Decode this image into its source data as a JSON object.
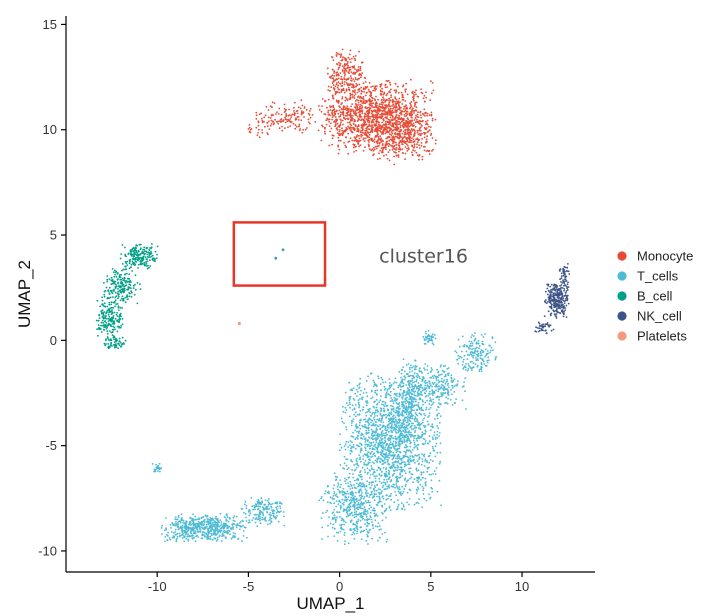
{
  "chart_data": {
    "type": "scatter",
    "xlabel": "UMAP_1",
    "ylabel": "UMAP_2",
    "xlim": [
      -15,
      14
    ],
    "ylim": [
      -11,
      15.4
    ],
    "x_ticks": [
      -10,
      -5,
      0,
      5,
      10
    ],
    "x_tick_labels": [
      "-10",
      "-5",
      "0",
      "5",
      "10"
    ],
    "y_ticks": [
      -10,
      -5,
      0,
      5,
      10,
      15
    ],
    "y_tick_labels": [
      "-10",
      "-5",
      "0",
      "5",
      "10",
      "15"
    ],
    "grid": false,
    "legend_position": "right",
    "series": [
      {
        "name": "Monocyte",
        "color": "#E64B35",
        "regions": [
          {
            "center": [
              2.0,
              10.6
            ],
            "spread": [
              2.6,
              1.5
            ],
            "count": 1300
          },
          {
            "center": [
              0.4,
              12.6
            ],
            "spread": [
              0.9,
              1.0
            ],
            "count": 220
          },
          {
            "center": [
              3.5,
              9.8
            ],
            "spread": [
              1.5,
              1.2
            ],
            "count": 300
          },
          {
            "center": [
              -2.6,
              10.6
            ],
            "spread": [
              1.2,
              0.7
            ],
            "count": 120
          },
          {
            "center": [
              -4.3,
              10.3
            ],
            "spread": [
              0.6,
              0.7
            ],
            "count": 40
          }
        ]
      },
      {
        "name": "T_cells",
        "color": "#4DBBD5",
        "regions": [
          {
            "center": [
              2.8,
              -4.8
            ],
            "spread": [
              2.3,
              2.8
            ],
            "count": 1600
          },
          {
            "center": [
              0.8,
              -8.0
            ],
            "spread": [
              1.6,
              1.4
            ],
            "count": 450
          },
          {
            "center": [
              5.2,
              -2.2
            ],
            "spread": [
              1.5,
              0.9
            ],
            "count": 260
          },
          {
            "center": [
              7.4,
              -0.6
            ],
            "spread": [
              1.0,
              0.8
            ],
            "count": 160
          },
          {
            "center": [
              4.9,
              0.1
            ],
            "spread": [
              0.35,
              0.3
            ],
            "count": 40
          },
          {
            "center": [
              -7.4,
              -8.9
            ],
            "spread": [
              2.0,
              0.55
            ],
            "count": 560
          },
          {
            "center": [
              -4.2,
              -8.1
            ],
            "spread": [
              1.0,
              0.6
            ],
            "count": 170
          },
          {
            "center": [
              -10.0,
              -6.1
            ],
            "spread": [
              0.25,
              0.2
            ],
            "count": 25
          },
          {
            "center": [
              3.8,
              -2.8
            ],
            "spread": [
              0.7,
              1.6
            ],
            "count": 200
          }
        ]
      },
      {
        "name": "B_cell",
        "color": "#00A087",
        "regions": [
          {
            "center": [
              -11.0,
              4.0
            ],
            "spread": [
              0.9,
              0.5
            ],
            "count": 190
          },
          {
            "center": [
              -12.0,
              2.6
            ],
            "spread": [
              0.9,
              0.7
            ],
            "count": 190
          },
          {
            "center": [
              -12.6,
              1.0
            ],
            "spread": [
              0.6,
              0.8
            ],
            "count": 180
          },
          {
            "center": [
              -12.3,
              -0.1
            ],
            "spread": [
              0.5,
              0.3
            ],
            "count": 60
          }
        ]
      },
      {
        "name": "NK_cell",
        "color": "#3C5488",
        "regions": [
          {
            "center": [
              11.9,
              1.9
            ],
            "spread": [
              0.55,
              0.7
            ],
            "count": 260
          },
          {
            "center": [
              12.3,
              3.1
            ],
            "spread": [
              0.25,
              0.45
            ],
            "count": 50
          },
          {
            "center": [
              11.2,
              0.6
            ],
            "spread": [
              0.45,
              0.25
            ],
            "count": 40
          }
        ]
      },
      {
        "name": "Platelets",
        "color": "#F39B7F",
        "points": [
          [
            -5.5,
            0.8
          ]
        ]
      }
    ],
    "highlighted_points": [
      {
        "x": -3.5,
        "y": 3.9,
        "color": "#3a9fb0"
      },
      {
        "x": -3.1,
        "y": 4.3,
        "color": "#3a9fb0"
      }
    ],
    "annotation": {
      "text": "cluster16",
      "x": 4.6,
      "y": 3.7,
      "box": {
        "x0": -5.8,
        "x1": -0.8,
        "y0": 2.6,
        "y1": 5.6,
        "color": "#E8352A"
      }
    }
  }
}
